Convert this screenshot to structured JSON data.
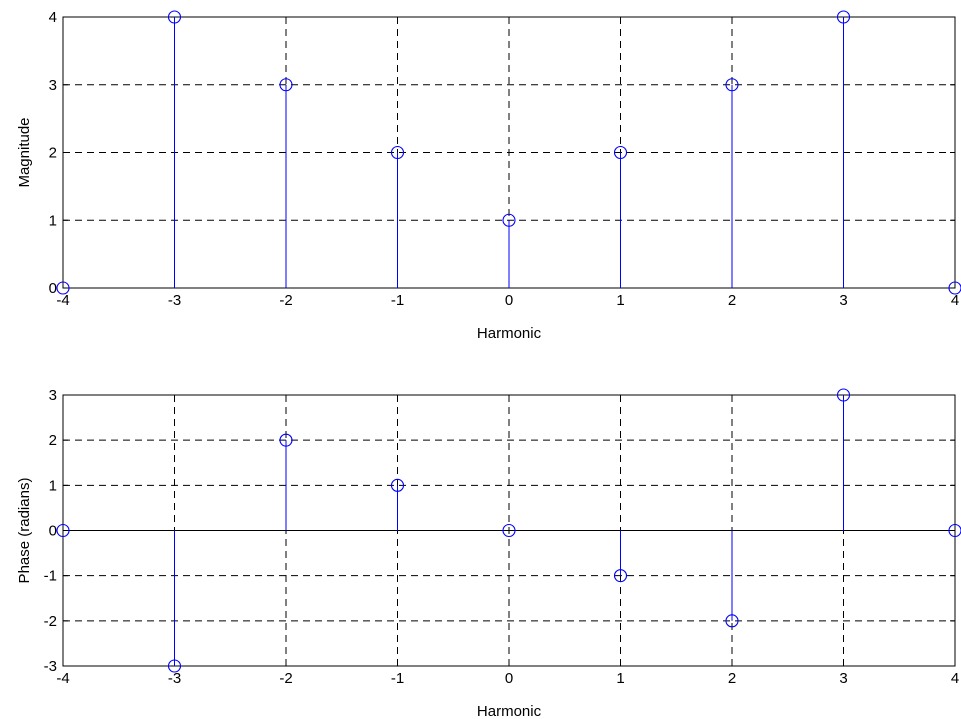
{
  "colors": {
    "stem": "#0000FF",
    "axis": "#000000",
    "background": "#FFFFFF"
  },
  "chart_data": [
    {
      "type": "stem",
      "title": "",
      "xlabel": "Harmonic",
      "ylabel": "Magnitude",
      "xlim": [
        -4,
        4
      ],
      "ylim": [
        0,
        4
      ],
      "xticks": [
        -4,
        -3,
        -2,
        -1,
        0,
        1,
        2,
        3,
        4
      ],
      "yticks": [
        0,
        1,
        2,
        3,
        4
      ],
      "grid": true,
      "marker": "circle",
      "series": [
        {
          "x": [
            -4,
            -3,
            -2,
            -1,
            0,
            1,
            2,
            3,
            4
          ],
          "y": [
            0,
            4,
            3,
            2,
            1,
            2,
            3,
            4,
            0
          ]
        }
      ]
    },
    {
      "type": "stem",
      "title": "",
      "xlabel": "Harmonic",
      "ylabel": "Phase (radians)",
      "xlim": [
        -4,
        4
      ],
      "ylim": [
        -3,
        3
      ],
      "xticks": [
        -4,
        -3,
        -2,
        -1,
        0,
        1,
        2,
        3,
        4
      ],
      "yticks": [
        -3,
        -2,
        -1,
        0,
        1,
        2,
        3
      ],
      "grid": true,
      "marker": "circle",
      "series": [
        {
          "x": [
            -4,
            -3,
            -2,
            -1,
            0,
            1,
            2,
            3,
            4
          ],
          "y": [
            0,
            -3,
            2,
            1,
            0,
            -1,
            -2,
            3,
            0
          ]
        }
      ]
    }
  ]
}
